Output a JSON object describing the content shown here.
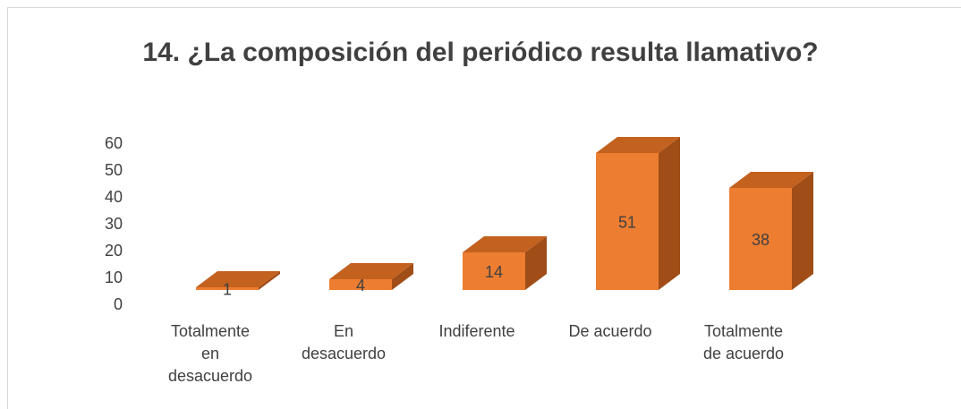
{
  "chart_data": {
    "type": "bar3d",
    "title": "14. ¿La composición del periódico resulta llamativo?",
    "categories": [
      "Totalmente en desacuerdo",
      "En desacuerdo",
      "Indiferente",
      "De acuerdo",
      "Totalmente de acuerdo"
    ],
    "values": [
      1,
      4,
      14,
      51,
      38
    ],
    "color": "#ed7d31",
    "ylim": [
      0,
      60
    ],
    "yticks": [
      0,
      10,
      20,
      30,
      40,
      50,
      60
    ],
    "grid": false
  }
}
